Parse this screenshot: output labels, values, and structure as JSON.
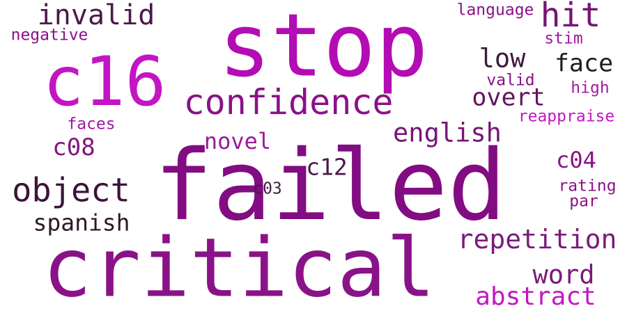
{
  "words": [
    {
      "text": "failed",
      "color": "#820c82"
    },
    {
      "text": "stop",
      "color": "#b40cb4"
    },
    {
      "text": "critical",
      "color": "#8a1288"
    },
    {
      "text": "c16",
      "color": "#c414c4"
    },
    {
      "text": "confidence",
      "color": "#8a1288"
    },
    {
      "text": "object",
      "color": "#3c1438"
    },
    {
      "text": "invalid",
      "color": "#4a1a48"
    },
    {
      "text": "hit",
      "color": "#741674"
    },
    {
      "text": "repetition",
      "color": "#7a1a7a"
    },
    {
      "text": "english",
      "color": "#741674"
    },
    {
      "text": "word",
      "color": "#7a1a7a"
    },
    {
      "text": "abstract",
      "color": "#c018c0"
    },
    {
      "text": "spanish",
      "color": "#2e1828"
    },
    {
      "text": "low",
      "color": "#3e1a3c"
    },
    {
      "text": "face",
      "color": "#221a20"
    },
    {
      "text": "overt",
      "color": "#64145e"
    },
    {
      "text": "novel",
      "color": "#9a1c9a"
    },
    {
      "text": "c08",
      "color": "#801680"
    },
    {
      "text": "c12",
      "color": "#4a1a48"
    },
    {
      "text": "c04",
      "color": "#8a1288"
    },
    {
      "text": "negative",
      "color": "#8a1288"
    },
    {
      "text": "language",
      "color": "#8a1288"
    },
    {
      "text": "stim",
      "color": "#a018a0"
    },
    {
      "text": "valid",
      "color": "#8a1288"
    },
    {
      "text": "high",
      "color": "#a01ca0"
    },
    {
      "text": "reappraise",
      "color": "#c018c0"
    },
    {
      "text": "faces",
      "color": "#a018a0"
    },
    {
      "text": "c03",
      "color": "#3c1c3a"
    },
    {
      "text": "rating",
      "color": "#8a1288"
    },
    {
      "text": "par",
      "color": "#8a1288"
    }
  ]
}
